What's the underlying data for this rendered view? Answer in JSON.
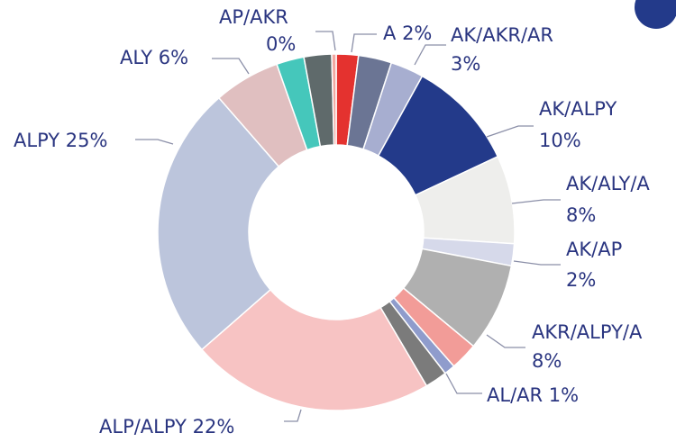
{
  "chart_data": {
    "type": "donut",
    "categories": [
      "A",
      null,
      "AK/AKR/AR",
      "AK/ALPY",
      "AK/ALY/A",
      "AK/AP",
      "AKR/ALPY/A",
      null,
      "AL/AR",
      null,
      "ALP/ALPY",
      "ALPY",
      "ALY",
      null,
      null,
      "AP/AKR"
    ],
    "values": [
      2,
      3,
      3,
      10,
      8,
      2,
      8,
      2.5,
      1,
      2,
      22,
      25,
      6,
      2.5,
      2.5,
      0.4
    ],
    "value_labels": [
      "2%",
      null,
      "3%",
      "10%",
      "8%",
      "2%",
      "8%",
      null,
      "1%",
      null,
      "22%",
      "25%",
      "6%",
      null,
      null,
      "0%"
    ],
    "colors": [
      "#e4322f",
      "#6b7594",
      "#a7aed0",
      "#233a8a",
      "#eeeeec",
      "#d6d9ea",
      "#b0b0b0",
      "#f29c98",
      "#8f9ccc",
      "#7b7b7b",
      "#f7c3c3",
      "#bcc5dc",
      "#e0bfc0",
      "#45c7bb",
      "#5f6a6b",
      "#f2a7a0"
    ]
  }
}
